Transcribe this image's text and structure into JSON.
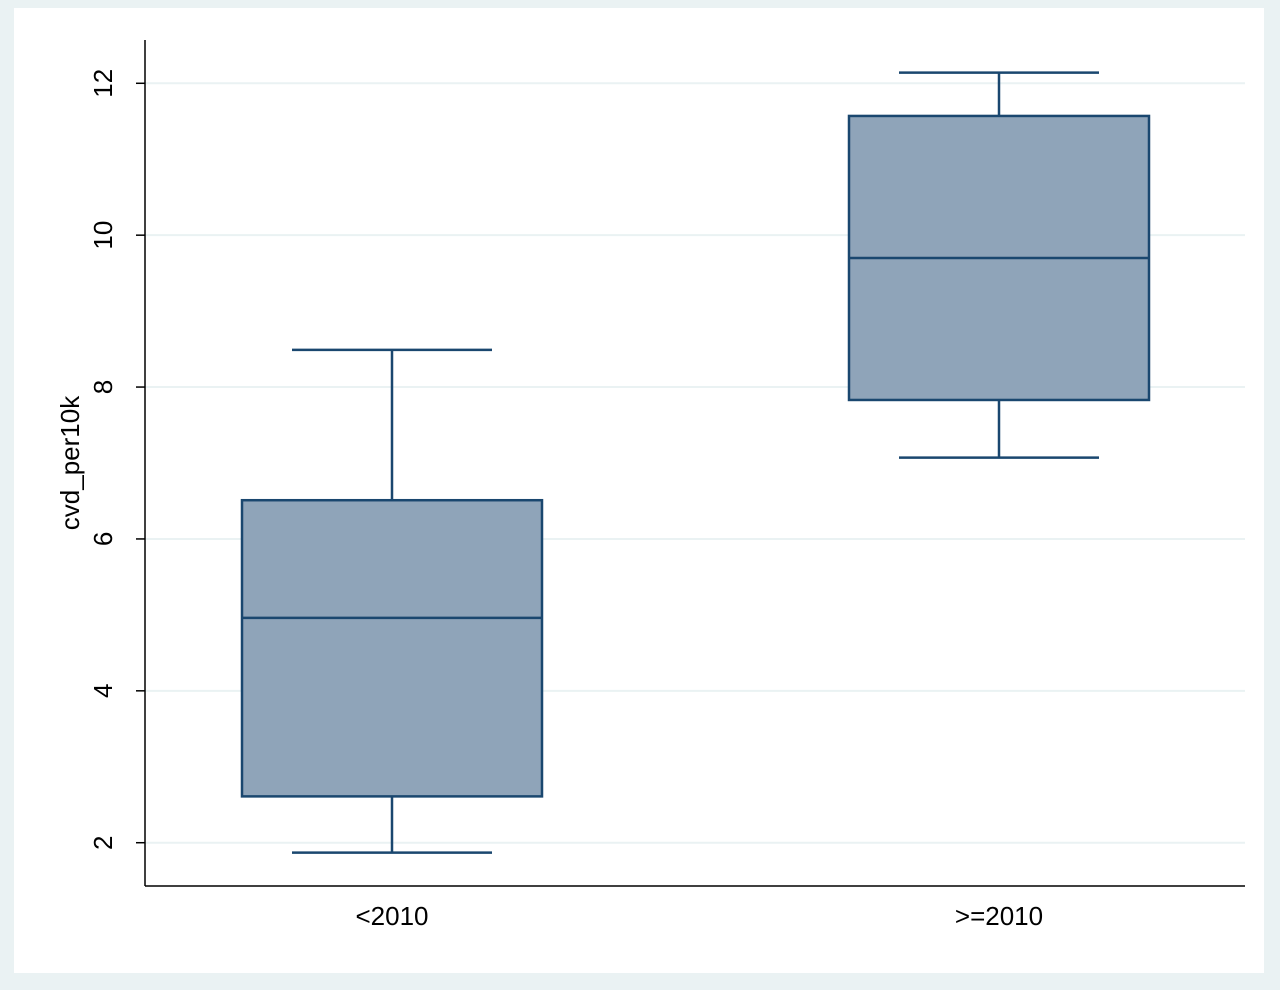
{
  "chart_data": {
    "type": "box",
    "y_label": "cvd_per10k",
    "categories": [
      "<2010",
      ">=2010"
    ],
    "min": [
      1.87,
      7.07
    ],
    "q1": [
      2.61,
      7.83
    ],
    "median": [
      4.96,
      9.7
    ],
    "q3": [
      6.51,
      11.57
    ],
    "max": [
      8.49,
      12.14
    ],
    "color": "#8fa4b9",
    "edge_color": "#1a476f",
    "ylim": [
      1.43,
      12.57
    ],
    "yticks": [
      2,
      4,
      6,
      8,
      10,
      12
    ],
    "grid": true
  }
}
